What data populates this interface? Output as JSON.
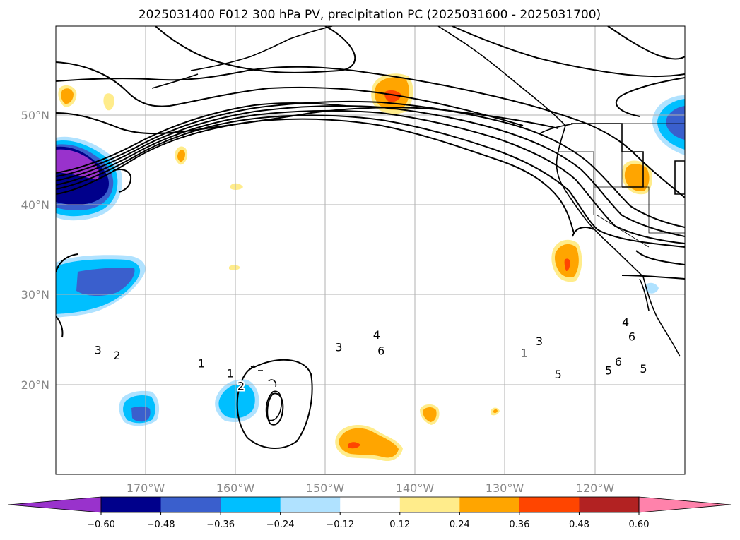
{
  "chart_data": {
    "type": "contour",
    "title": "2025031400 F012 300 hPa PV, precipitation PC (2025031600 - 2025031700)",
    "x_ticks": [
      "170°W",
      "160°W",
      "150°W",
      "140°W",
      "130°W",
      "120°W"
    ],
    "y_ticks": [
      "50°N",
      "40°N",
      "30°N",
      "20°N"
    ],
    "lon_range": [
      -180,
      -110
    ],
    "lat_range": [
      10,
      60
    ],
    "grid": true,
    "colorbar": {
      "orientation": "horizontal",
      "extend": "both",
      "colors": [
        "#9932cc",
        "#00008b",
        "#3a5fcd",
        "#00bfff",
        "#b0e2ff",
        "#ffffff",
        "#ffec8b",
        "#ffa500",
        "#ff4500",
        "#b22222",
        "#ff82ab"
      ],
      "tick_labels": [
        "−0.60",
        "−0.48",
        "−0.36",
        "−0.24",
        "−0.12",
        "0.12",
        "0.24",
        "0.36",
        "0.48",
        "0.60"
      ]
    },
    "contour_labels": [
      {
        "text": "3",
        "lon": -175.3,
        "lat": 23.9
      },
      {
        "text": "3",
        "lon": -148.5,
        "lat": 24.2
      },
      {
        "text": "4",
        "lon": -144.3,
        "lat": 25.6
      },
      {
        "text": "4",
        "lon": -116.6,
        "lat": 27.0
      },
      {
        "text": "6",
        "lon": -143.8,
        "lat": 23.8
      },
      {
        "text": "6",
        "lon": -117.4,
        "lat": 22.6
      },
      {
        "text": "6",
        "lon": -115.9,
        "lat": 25.4
      },
      {
        "text": "5",
        "lon": -114.6,
        "lat": 21.8
      },
      {
        "text": "5",
        "lon": -118.5,
        "lat": 21.6
      },
      {
        "text": "5",
        "lon": -124.1,
        "lat": 21.2
      },
      {
        "text": "3",
        "lon": -126.2,
        "lat": 24.9
      },
      {
        "text": "1",
        "lon": -127.9,
        "lat": 23.6
      },
      {
        "text": "2",
        "lon": -173.2,
        "lat": 23.3
      },
      {
        "text": "1",
        "lon": -160.6,
        "lat": 21.3
      },
      {
        "text": "2",
        "lon": -159.4,
        "lat": 19.9
      },
      {
        "text": "1",
        "lon": -163.8,
        "lat": 22.4
      }
    ]
  }
}
